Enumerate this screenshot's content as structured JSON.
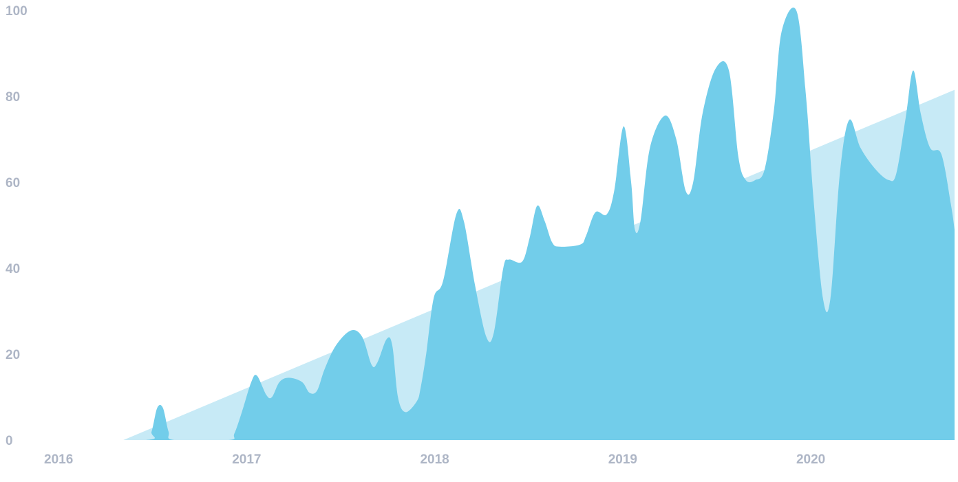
{
  "chart_data": {
    "type": "area",
    "title": "",
    "xlabel": "",
    "ylabel": "",
    "xlim": [
      2016,
      2020.82
    ],
    "ylim": [
      0,
      100
    ],
    "x_ticks": [
      2016,
      2017,
      2018,
      2019,
      2020
    ],
    "x_tick_labels": [
      "2016",
      "2017",
      "2018",
      "2019",
      "2020"
    ],
    "y_ticks": [
      0,
      20,
      40,
      60,
      80,
      100
    ],
    "y_tick_labels": [
      "0",
      "20",
      "40",
      "60",
      "80",
      "100"
    ],
    "grid": false,
    "legend": "none",
    "series": [
      {
        "kind": "trend",
        "points": [
          [
            2016.4,
            0
          ],
          [
            2020.82,
            81.5
          ]
        ]
      },
      {
        "kind": "values",
        "points": [
          [
            2016.0,
            0
          ],
          [
            2016.52,
            0
          ],
          [
            2016.55,
            2
          ],
          [
            2016.58,
            7.5
          ],
          [
            2016.61,
            7.5
          ],
          [
            2016.64,
            2
          ],
          [
            2016.67,
            0
          ],
          [
            2016.96,
            0
          ],
          [
            2016.99,
            1.5
          ],
          [
            2017.03,
            6.5
          ],
          [
            2017.08,
            13.5
          ],
          [
            2017.11,
            15
          ],
          [
            2017.16,
            10.5
          ],
          [
            2017.19,
            10
          ],
          [
            2017.23,
            13.5
          ],
          [
            2017.28,
            14.5
          ],
          [
            2017.35,
            13.5
          ],
          [
            2017.39,
            11
          ],
          [
            2017.43,
            11.5
          ],
          [
            2017.47,
            16.5
          ],
          [
            2017.53,
            22
          ],
          [
            2017.61,
            25.5
          ],
          [
            2017.67,
            24
          ],
          [
            2017.72,
            17.5
          ],
          [
            2017.75,
            18
          ],
          [
            2017.8,
            23.5
          ],
          [
            2017.83,
            22
          ],
          [
            2017.86,
            10
          ],
          [
            2017.9,
            6.5
          ],
          [
            2017.96,
            9
          ],
          [
            2017.98,
            12
          ],
          [
            2018.01,
            20
          ],
          [
            2018.05,
            33
          ],
          [
            2018.1,
            37
          ],
          [
            2018.17,
            52.5
          ],
          [
            2018.21,
            51
          ],
          [
            2018.27,
            36
          ],
          [
            2018.33,
            24
          ],
          [
            2018.37,
            25
          ],
          [
            2018.42,
            40
          ],
          [
            2018.45,
            42
          ],
          [
            2018.52,
            41.5
          ],
          [
            2018.56,
            47
          ],
          [
            2018.6,
            54.5
          ],
          [
            2018.64,
            51
          ],
          [
            2018.68,
            46
          ],
          [
            2018.72,
            45
          ],
          [
            2018.83,
            45.5
          ],
          [
            2018.86,
            47.5
          ],
          [
            2018.91,
            53
          ],
          [
            2018.97,
            52.5
          ],
          [
            2019.01,
            58
          ],
          [
            2019.06,
            73
          ],
          [
            2019.1,
            60
          ],
          [
            2019.12,
            49
          ],
          [
            2019.15,
            51
          ],
          [
            2019.2,
            68
          ],
          [
            2019.28,
            75.5
          ],
          [
            2019.34,
            70
          ],
          [
            2019.39,
            58
          ],
          [
            2019.43,
            60
          ],
          [
            2019.48,
            76
          ],
          [
            2019.55,
            86.5
          ],
          [
            2019.62,
            86
          ],
          [
            2019.67,
            66
          ],
          [
            2019.71,
            60.5
          ],
          [
            2019.76,
            60.5
          ],
          [
            2019.81,
            63
          ],
          [
            2019.86,
            77
          ],
          [
            2019.9,
            95
          ],
          [
            2019.98,
            99.8
          ],
          [
            2020.03,
            80
          ],
          [
            2020.07,
            56
          ],
          [
            2020.12,
            33
          ],
          [
            2020.16,
            33
          ],
          [
            2020.21,
            62
          ],
          [
            2020.26,
            74.5
          ],
          [
            2020.32,
            68
          ],
          [
            2020.4,
            63
          ],
          [
            2020.47,
            60.5
          ],
          [
            2020.51,
            62
          ],
          [
            2020.56,
            75
          ],
          [
            2020.6,
            86
          ],
          [
            2020.64,
            76
          ],
          [
            2020.69,
            68
          ],
          [
            2020.75,
            66.5
          ],
          [
            2020.8,
            55
          ],
          [
            2020.82,
            49
          ]
        ]
      }
    ],
    "colors": {
      "trend_fill": "#c7eaf6",
      "area_fill": "#72cdea",
      "tick_text": "#aeb6c6"
    }
  }
}
